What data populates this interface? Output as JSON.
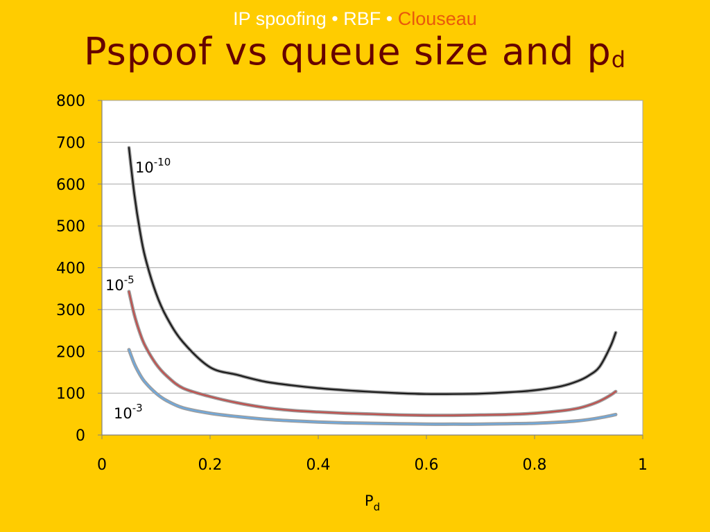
{
  "header": {
    "part1": "IP spoofing",
    "sep1": "•",
    "part2": "RBF",
    "sep2": "•",
    "part3": "Clouseau"
  },
  "slide": {
    "title_main": "Pspoof vs queue size and p",
    "title_sub": "d"
  },
  "colors": {
    "background": "#FFCC00",
    "header_text": "#FFFFFF",
    "header_accent": "#E8590C",
    "title": "#660000"
  },
  "chart_data": {
    "type": "line",
    "xlabel_main": "P",
    "xlabel_sub": "d",
    "ylabel": "",
    "xlim": [
      0,
      1
    ],
    "ylim": [
      0,
      800
    ],
    "xticks": [
      "0",
      "0.2",
      "0.4",
      "0.6",
      "0.8",
      "1"
    ],
    "yticks": [
      "0",
      "100",
      "200",
      "300",
      "400",
      "500",
      "600",
      "700",
      "800"
    ],
    "grid": true,
    "series": [
      {
        "label_base": "10",
        "label_exp": "-10",
        "color": "#1a1a1a",
        "x": [
          0.05,
          0.06,
          0.07,
          0.08,
          0.1,
          0.12,
          0.15,
          0.2,
          0.25,
          0.3,
          0.35,
          0.4,
          0.45,
          0.5,
          0.55,
          0.6,
          0.65,
          0.7,
          0.75,
          0.8,
          0.85,
          0.88,
          0.9,
          0.92,
          0.94,
          0.95
        ],
        "y": [
          687,
          575,
          490,
          425,
          339,
          281,
          222,
          162,
          144,
          128,
          119,
          112,
          107,
          103,
          100,
          98,
          98,
          99,
          102,
          107,
          117,
          129,
          142,
          163,
          211,
          245
        ]
      },
      {
        "label_base": "10",
        "label_exp": "-5",
        "color": "#C0504D",
        "x": [
          0.05,
          0.06,
          0.07,
          0.08,
          0.1,
          0.12,
          0.15,
          0.2,
          0.25,
          0.3,
          0.35,
          0.4,
          0.45,
          0.5,
          0.55,
          0.6,
          0.65,
          0.7,
          0.75,
          0.8,
          0.85,
          0.88,
          0.9,
          0.92,
          0.94,
          0.95
        ],
        "y": [
          343,
          287,
          245,
          213,
          170,
          141,
          112,
          92,
          77,
          66,
          59,
          55,
          52,
          50,
          48,
          47,
          47,
          48,
          49,
          52,
          58,
          64,
          71,
          81,
          95,
          104
        ]
      },
      {
        "label_base": "10",
        "label_exp": "-3",
        "color": "#6FA8DC",
        "x": [
          0.05,
          0.06,
          0.07,
          0.08,
          0.1,
          0.12,
          0.15,
          0.2,
          0.25,
          0.3,
          0.35,
          0.4,
          0.45,
          0.5,
          0.55,
          0.6,
          0.65,
          0.7,
          0.75,
          0.8,
          0.85,
          0.88,
          0.9,
          0.92,
          0.94,
          0.95
        ],
        "y": [
          204,
          170,
          145,
          126,
          100,
          82,
          65,
          52,
          44,
          38,
          34,
          31,
          29,
          28,
          27,
          26,
          26,
          26,
          27,
          28,
          31,
          34,
          37,
          41,
          46,
          49
        ]
      }
    ]
  }
}
